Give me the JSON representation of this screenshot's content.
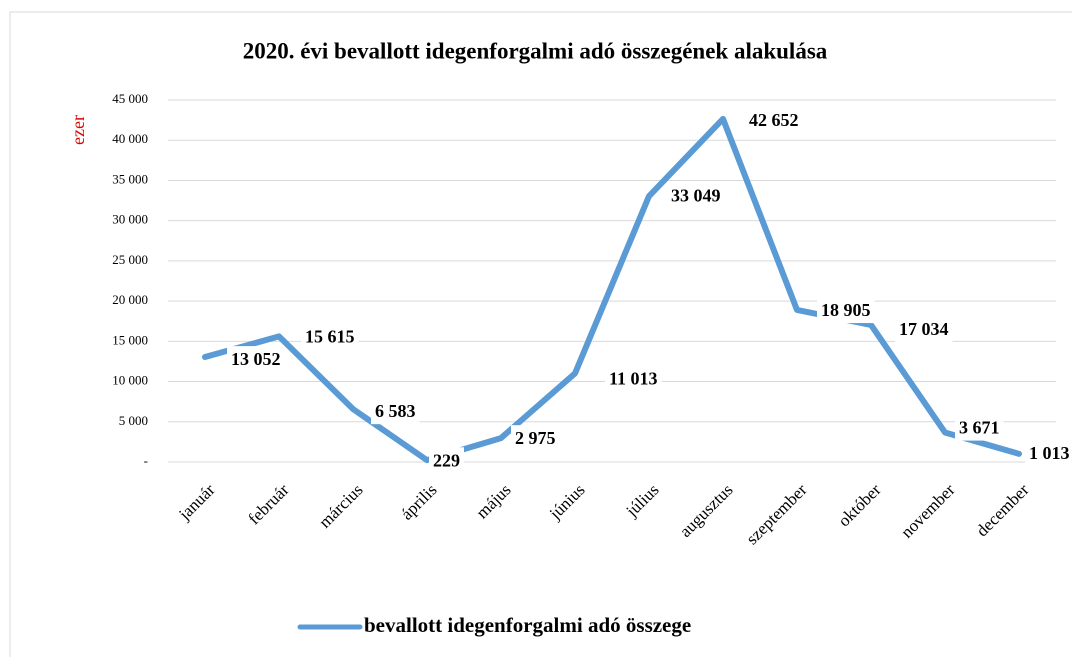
{
  "chart_data": {
    "type": "line",
    "title": "2020. évi bevallott idegenforgalmi adó összegének alakulása",
    "ylabel": "ezer",
    "categories": [
      "január",
      "február",
      "március",
      "április",
      "május",
      "június",
      "július",
      "augusztus",
      "szeptember",
      "október",
      "november",
      "december"
    ],
    "series": [
      {
        "name": "bevallott idegenforgalmi adó összege",
        "color": "#5b9bd5",
        "values": [
          13052,
          15615,
          6583,
          229,
          2975,
          11013,
          33049,
          42652,
          18905,
          17034,
          3671,
          1013
        ],
        "value_labels": [
          "13 052",
          "15 615",
          "6 583",
          "229",
          "2 975",
          "11 013",
          "33 049",
          "42 652",
          "18 905",
          "17 034",
          "3 671",
          "1 013"
        ]
      }
    ],
    "ylim": [
      0,
      45000
    ],
    "yticks": [
      {
        "value": 0,
        "label": "-"
      },
      {
        "value": 5000,
        "label": "5 000"
      },
      {
        "value": 10000,
        "label": "10 000"
      },
      {
        "value": 15000,
        "label": "15 000"
      },
      {
        "value": 20000,
        "label": "20 000"
      },
      {
        "value": 25000,
        "label": "25 000"
      },
      {
        "value": 30000,
        "label": "30 000"
      },
      {
        "value": 35000,
        "label": "35 000"
      },
      {
        "value": 40000,
        "label": "40 000"
      },
      {
        "value": 45000,
        "label": "45 000"
      }
    ],
    "grid": true
  }
}
